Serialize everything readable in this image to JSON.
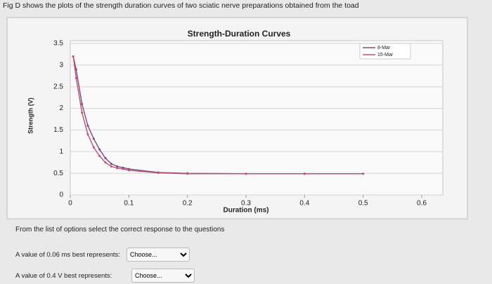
{
  "header": {
    "text": "Fig D shows the plots of the strength duration curves of two sciatic nerve preparations obtained from the toad"
  },
  "chart_data": {
    "type": "line",
    "title": "Strength-Duration Curves",
    "x_label": "Duration (ms)",
    "y_label": "Strength (V)",
    "x": [
      0.005,
      0.01,
      0.02,
      0.03,
      0.04,
      0.05,
      0.06,
      0.07,
      0.08,
      0.09,
      0.1,
      0.15,
      0.2,
      0.3,
      0.4,
      0.5
    ],
    "series": [
      {
        "name": "8-Mar",
        "color": "#7a4a86",
        "values": [
          3.2,
          2.9,
          2.1,
          1.6,
          1.3,
          1.05,
          0.85,
          0.72,
          0.66,
          0.63,
          0.6,
          0.52,
          0.5,
          0.49,
          0.49,
          0.49
        ]
      },
      {
        "name": "15-Mar",
        "color": "#c2506c",
        "values": [
          3.2,
          2.7,
          1.9,
          1.4,
          1.1,
          0.9,
          0.75,
          0.66,
          0.62,
          0.6,
          0.57,
          0.51,
          0.49,
          0.49,
          0.49,
          0.49
        ]
      }
    ],
    "xlim": [
      0,
      0.6
    ],
    "xticks": [
      0,
      0.1,
      0.2,
      0.3,
      0.4,
      0.5,
      0.6
    ],
    "ylim": [
      0,
      3.5
    ],
    "yticks": [
      0,
      0.5,
      1,
      1.5,
      2,
      2.5,
      3,
      3.5
    ],
    "grid": true,
    "legend": "top-right"
  },
  "instructions": "From the list of options select the correct response to the questions",
  "questions": [
    {
      "text": "A value of 0.06 ms best represents:",
      "choice": "Choose..."
    },
    {
      "text": "A value of 0.4 V best represents:",
      "choice": "Choose..."
    }
  ]
}
